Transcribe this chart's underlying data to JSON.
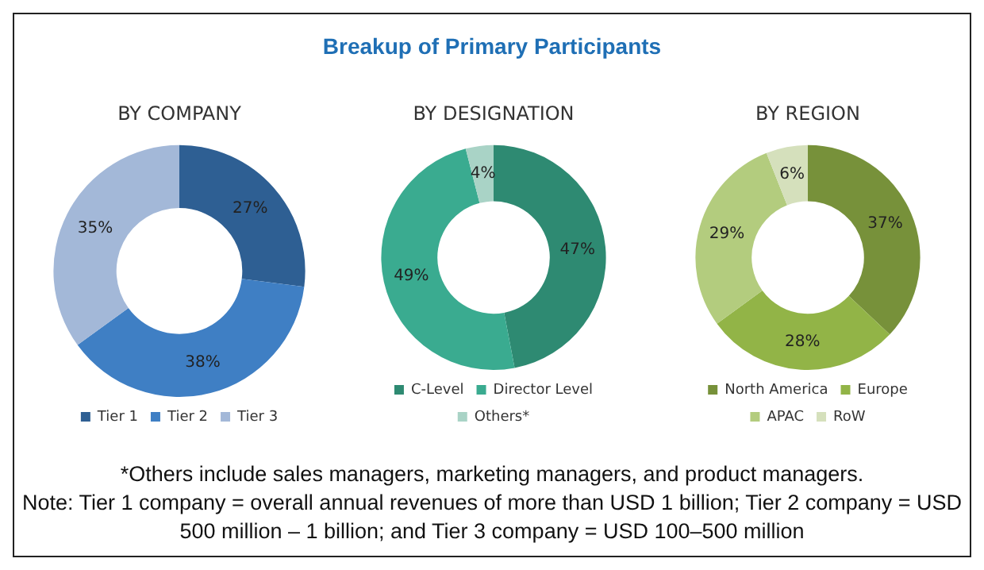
{
  "chart_data": [
    {
      "type": "donut",
      "title": "BY COMPANY",
      "categories": [
        "Tier 1",
        "Tier 2",
        "Tier 3"
      ],
      "values": [
        27,
        38,
        35
      ],
      "value_labels": [
        "27%",
        "38%",
        "35%"
      ],
      "colors": [
        "#2e5f93",
        "#3f7fc4",
        "#a3b8d8"
      ],
      "legend": "bottom"
    },
    {
      "type": "donut",
      "title": "BY DESIGNATION",
      "categories": [
        "C-Level",
        "Director Level",
        "Others*"
      ],
      "values": [
        47,
        49,
        4
      ],
      "value_labels": [
        "47%",
        "49%",
        "4%"
      ],
      "colors": [
        "#2e8a72",
        "#3aab90",
        "#a9d3c6"
      ],
      "legend": "bottom"
    },
    {
      "type": "donut",
      "title": "BY REGION",
      "categories": [
        "North America",
        "Europe",
        "APAC",
        "RoW"
      ],
      "values": [
        37,
        28,
        29,
        6
      ],
      "value_labels": [
        "37%",
        "28%",
        "29%",
        "6%"
      ],
      "colors": [
        "#77913a",
        "#92b447",
        "#b3cc7e",
        "#d5e0bc"
      ],
      "legend": "bottom"
    },
    {
      "type": "other",
      "title": "Breakup of Primary Participants",
      "annotations": [
        "*Others include sales managers, marketing managers, and product managers.",
        "Note: Tier 1 company = overall annual revenues of more than USD 1 billion; Tier 2 company = USD 500 million – 1 billion; and Tier 3 company = USD 100–500 million"
      ]
    }
  ]
}
